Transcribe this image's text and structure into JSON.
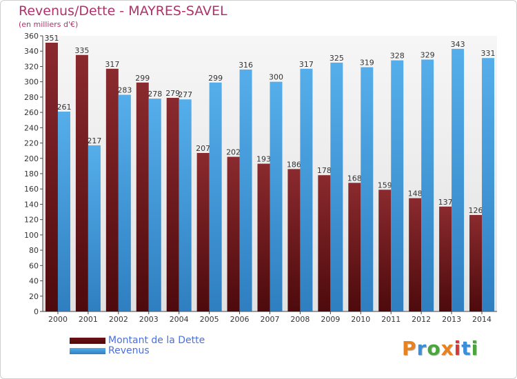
{
  "header": {
    "title": "Revenus/Dette - MAYRES-SAVEL",
    "subtitle": "(en milliers d'€)"
  },
  "logo": {
    "text": "Proxiti",
    "letters": [
      {
        "ch": "P",
        "color": "#e8821e"
      },
      {
        "ch": "r",
        "color": "#3a8fd8"
      },
      {
        "ch": "o",
        "color": "#4aa63c"
      },
      {
        "ch": "x",
        "color": "#e8821e"
      },
      {
        "ch": "i",
        "color": "#d43a3a"
      },
      {
        "ch": "t",
        "color": "#3a8fd8"
      },
      {
        "ch": "i",
        "color": "#4aa63c"
      }
    ]
  },
  "chart_data": {
    "type": "bar",
    "title": "Revenus/Dette - MAYRES-SAVEL",
    "ylabel": "(en milliers d'€)",
    "xlabel": "",
    "categories": [
      "2000",
      "2001",
      "2002",
      "2003",
      "2004",
      "2005",
      "2006",
      "2007",
      "2008",
      "2009",
      "2010",
      "2011",
      "2012",
      "2013",
      "2014"
    ],
    "ylim": [
      0,
      360
    ],
    "ytick_step": 20,
    "grid": false,
    "legend_position": "bottom-left",
    "series": [
      {
        "name": "Montant de la Dette",
        "color": "#7a1a1e",
        "values": [
          351,
          335,
          317,
          299,
          279,
          207,
          202,
          193,
          186,
          178,
          168,
          159,
          148,
          137,
          126
        ]
      },
      {
        "name": "Revenus",
        "color": "#3f9ae0",
        "values": [
          261,
          217,
          283,
          278,
          277,
          299,
          316,
          300,
          317,
          325,
          319,
          328,
          329,
          343,
          331
        ]
      }
    ]
  }
}
